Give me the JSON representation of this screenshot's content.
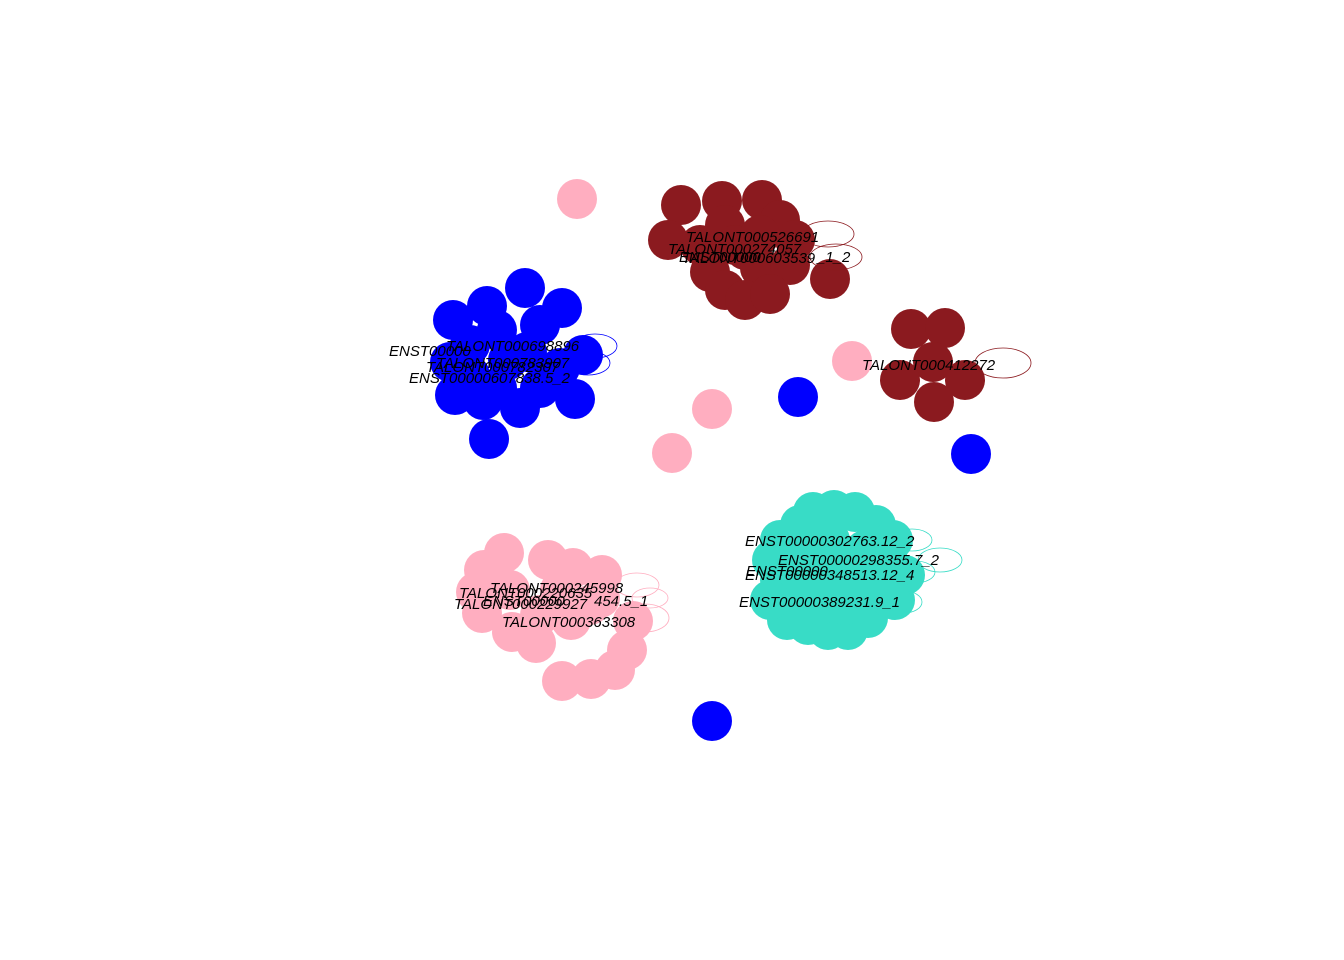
{
  "palette": {
    "blue": "#0000ff",
    "darkred": "#8b1a1f",
    "pink": "#ffaec0",
    "turquoise": "#38dcc6",
    "background": "#ffffff"
  },
  "clusters": [
    {
      "name": "blue-cluster",
      "color": "#0000ff",
      "labels": [
        "TALONT000698896",
        "ENST00000",
        "TALONT000783907",
        "TALONT000782307",
        "ENST00000607838.5_2"
      ]
    },
    {
      "name": "darkred-cluster-top",
      "color": "#8b1a1f",
      "labels": [
        "TALONT000526691",
        "TALONT000274057",
        "TALONT000603539",
        "ENST00000",
        "_1_2"
      ]
    },
    {
      "name": "darkred-cluster-right",
      "color": "#8b1a1f",
      "labels": [
        "TALONT000412272"
      ]
    },
    {
      "name": "pink-cluster",
      "color": "#ffaec0",
      "labels": [
        "TALONT000245998",
        "TALONT000220635",
        "ENST00000",
        "454.5_1",
        "TALONT000229927",
        "TALONT000363308"
      ]
    },
    {
      "name": "turquoise-cluster",
      "color": "#38dcc6",
      "labels": [
        "ENST00000302763.12_2",
        "ENST00000298355.7_2",
        "ENST00000",
        "ENST00000348513.12_4",
        "ENST00000389231.9_1"
      ]
    }
  ]
}
